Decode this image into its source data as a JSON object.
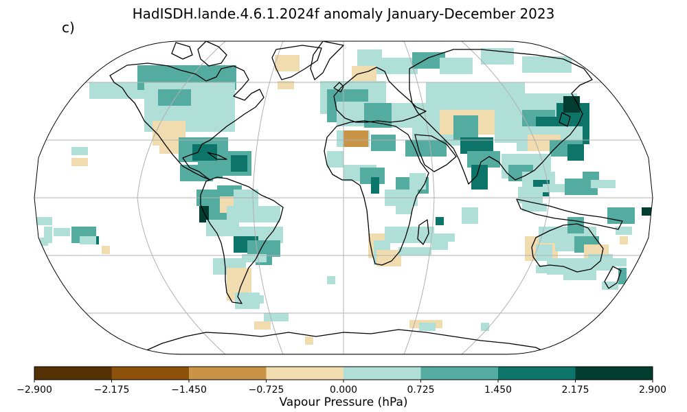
{
  "title": "HadISDH.lande.4.6.1.2024f anomaly January-December 2023",
  "panel_label": "c)",
  "colorbar": {
    "label": "Vapour Pressure (hPa)",
    "ticks": [
      "−2.900",
      "−2.175",
      "−1.450",
      "−0.725",
      "0.000",
      "0.725",
      "1.450",
      "2.175",
      "2.900"
    ],
    "colors": [
      "#543005",
      "#8c510a",
      "#c99446",
      "#f0dcae",
      "#b0dfd8",
      "#54aba0",
      "#0c7468",
      "#003c30"
    ]
  },
  "map": {
    "projection": "Robinson",
    "gridlines": true,
    "coastlines": true
  }
}
